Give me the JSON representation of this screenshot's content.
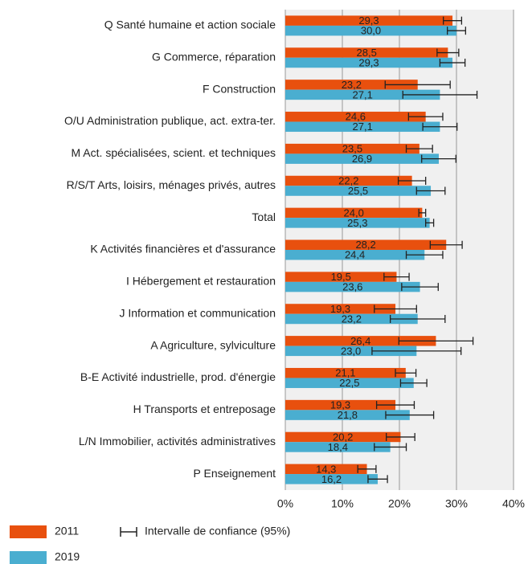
{
  "chart_data": {
    "type": "hbar",
    "categories": [
      "Q Santé humaine et action sociale",
      "G Commerce, réparation",
      "F Construction",
      "O/U Administration publique, act. extra-ter.",
      "M Act. spécialisées, scient. et techniques",
      "R/S/T Arts, loisirs, ménages privés, autres",
      "Total",
      "K Activités financières et d'assurance",
      "I Hébergement et restauration",
      "J Information et communication",
      "A Agriculture, sylviculture",
      "B-E Activité industrielle, prod. d'énergie",
      "H Transports et entreposage",
      "L/N Immobilier, activités administratives",
      "P Enseignement"
    ],
    "series": [
      {
        "name": "2011",
        "color": "#e8500e",
        "values": [
          29.3,
          28.5,
          23.2,
          24.6,
          23.5,
          22.2,
          24.0,
          28.2,
          19.5,
          19.3,
          26.4,
          21.1,
          19.3,
          20.2,
          14.3
        ],
        "value_labels": [
          "29,3",
          "28,5",
          "23,2",
          "24,6",
          "23,5",
          "22,2",
          "24,0",
          "28,2",
          "19,5",
          "19,3",
          "26,4",
          "21,1",
          "19,3",
          "20,2",
          "14,3"
        ],
        "errors": [
          1.6,
          1.9,
          5.7,
          3.0,
          2.3,
          2.4,
          0.6,
          2.8,
          2.2,
          3.7,
          6.5,
          1.8,
          3.3,
          2.5,
          1.6
        ]
      },
      {
        "name": "2019",
        "color": "#4aaed0",
        "values": [
          30.0,
          29.3,
          27.1,
          27.1,
          26.9,
          25.5,
          25.3,
          24.4,
          23.6,
          23.2,
          23.0,
          22.5,
          21.8,
          18.4,
          16.2
        ],
        "value_labels": [
          "30,0",
          "29,3",
          "27,1",
          "27,1",
          "26,9",
          "25,5",
          "25,3",
          "24,4",
          "23,6",
          "23,2",
          "23,0",
          "22,5",
          "21,8",
          "18,4",
          "16,2"
        ],
        "errors": [
          1.6,
          2.2,
          6.5,
          3.0,
          3.0,
          2.5,
          0.7,
          3.2,
          3.2,
          4.8,
          7.8,
          2.3,
          4.2,
          2.8,
          1.7
        ]
      }
    ],
    "error_legend": "Intervalle de confiance (95%)",
    "xlim": [
      0,
      40
    ],
    "xticks": [
      {
        "value": 0,
        "label": "0%"
      },
      {
        "value": 10,
        "label": "10%"
      },
      {
        "value": 20,
        "label": "20%"
      },
      {
        "value": 30,
        "label": "30%"
      },
      {
        "value": 40,
        "label": "40%"
      }
    ],
    "grid": true
  }
}
